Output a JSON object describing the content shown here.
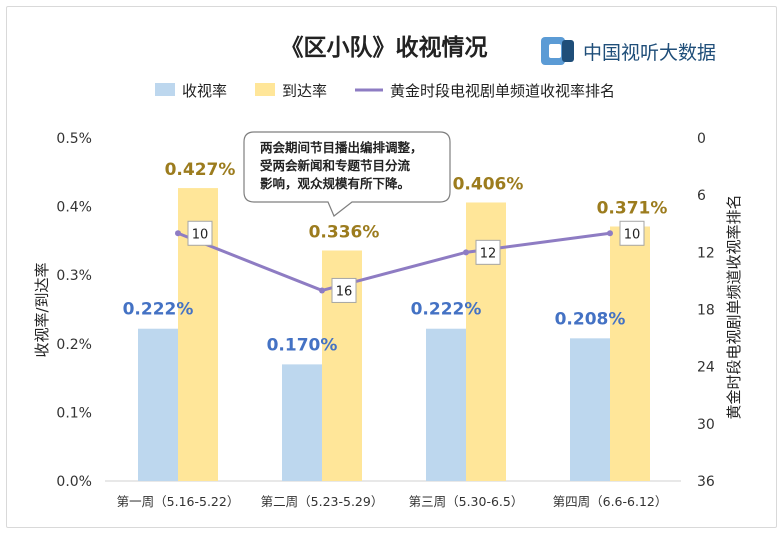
{
  "chart_data": {
    "type": "bar",
    "title": "《区小队》收视情况",
    "brand": "中国视听大数据",
    "categories": [
      "第一周（5.16-5.22）",
      "第二周（5.23-5.29）",
      "第三周（5.30-6.5）",
      "第四周（6.6-6.12）"
    ],
    "series": [
      {
        "name": "收视率",
        "values": [
          0.222,
          0.17,
          0.222,
          0.208
        ],
        "labels": [
          "0.222%",
          "0.170%",
          "0.222%",
          "0.208%"
        ],
        "color": "#bdd7ee"
      },
      {
        "name": "到达率",
        "values": [
          0.427,
          0.336,
          0.406,
          0.371
        ],
        "labels": [
          "0.427%",
          "0.336%",
          "0.406%",
          "0.371%"
        ],
        "color": "#ffe699"
      },
      {
        "name": "黄金时段电视剧单频道收视率排名",
        "type": "line",
        "axis": "right",
        "values": [
          10,
          16,
          12,
          10
        ],
        "labels": [
          "10",
          "16",
          "12",
          "10"
        ],
        "color": "#8e7cc3"
      }
    ],
    "ylabel": "收视率/到达率",
    "y2label": "黄金时段电视剧单频道收视率排名",
    "ylim": [
      0,
      0.5
    ],
    "yticks": [
      "0.0%",
      "0.1%",
      "0.2%",
      "0.3%",
      "0.4%",
      "0.5%"
    ],
    "y2lim": [
      0,
      36
    ],
    "y2ticks": [
      "0",
      "6",
      "12",
      "18",
      "24",
      "30",
      "36"
    ],
    "y2_inverted": true,
    "legend": "top",
    "grid": false,
    "annotation": {
      "lines": [
        "两会期间节目播出编排调整，",
        "受两会新闻和专题节目分流",
        "影响，观众规模有所下降。"
      ]
    }
  }
}
